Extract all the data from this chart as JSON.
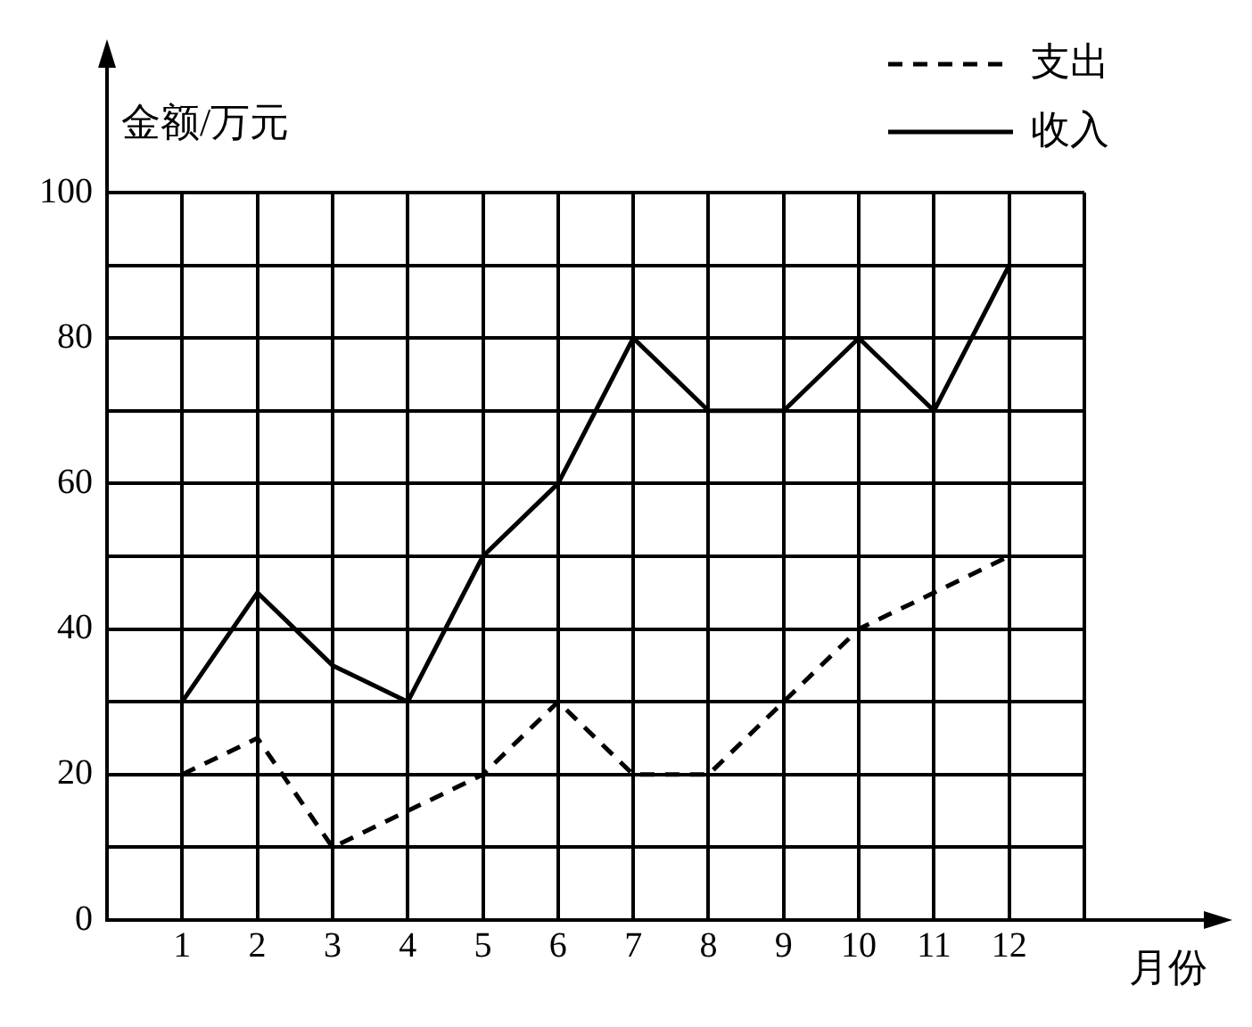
{
  "chart_data": {
    "type": "line",
    "xlabel": "月份",
    "ylabel": "金额/万元",
    "x": [
      1,
      2,
      3,
      4,
      5,
      6,
      7,
      8,
      9,
      10,
      11,
      12
    ],
    "series": [
      {
        "name": "支出",
        "color": "#000000",
        "line_style": "dashed",
        "values": [
          20,
          25,
          10,
          15,
          20,
          30,
          20,
          20,
          30,
          40,
          45,
          50
        ]
      },
      {
        "name": "收入",
        "color": "#000000",
        "line_style": "solid",
        "values": [
          30,
          45,
          35,
          30,
          50,
          60,
          80,
          70,
          70,
          80,
          70,
          90
        ]
      }
    ],
    "xlim": [
      0,
      13
    ],
    "xticks": [
      1,
      2,
      3,
      4,
      5,
      6,
      7,
      8,
      9,
      10,
      11,
      12,
      {
        "value": 13,
        "label": null
      }
    ],
    "ylim": [
      0,
      100
    ],
    "yticks": [
      0,
      {
        "value": 10,
        "label": null
      },
      20,
      {
        "value": 30,
        "label": null
      },
      40,
      {
        "value": 50,
        "label": null
      },
      60,
      {
        "value": 70,
        "label": null
      },
      80,
      {
        "value": 90,
        "label": null
      },
      100
    ],
    "grid": true,
    "legend": "top right",
    "marker": "none"
  }
}
